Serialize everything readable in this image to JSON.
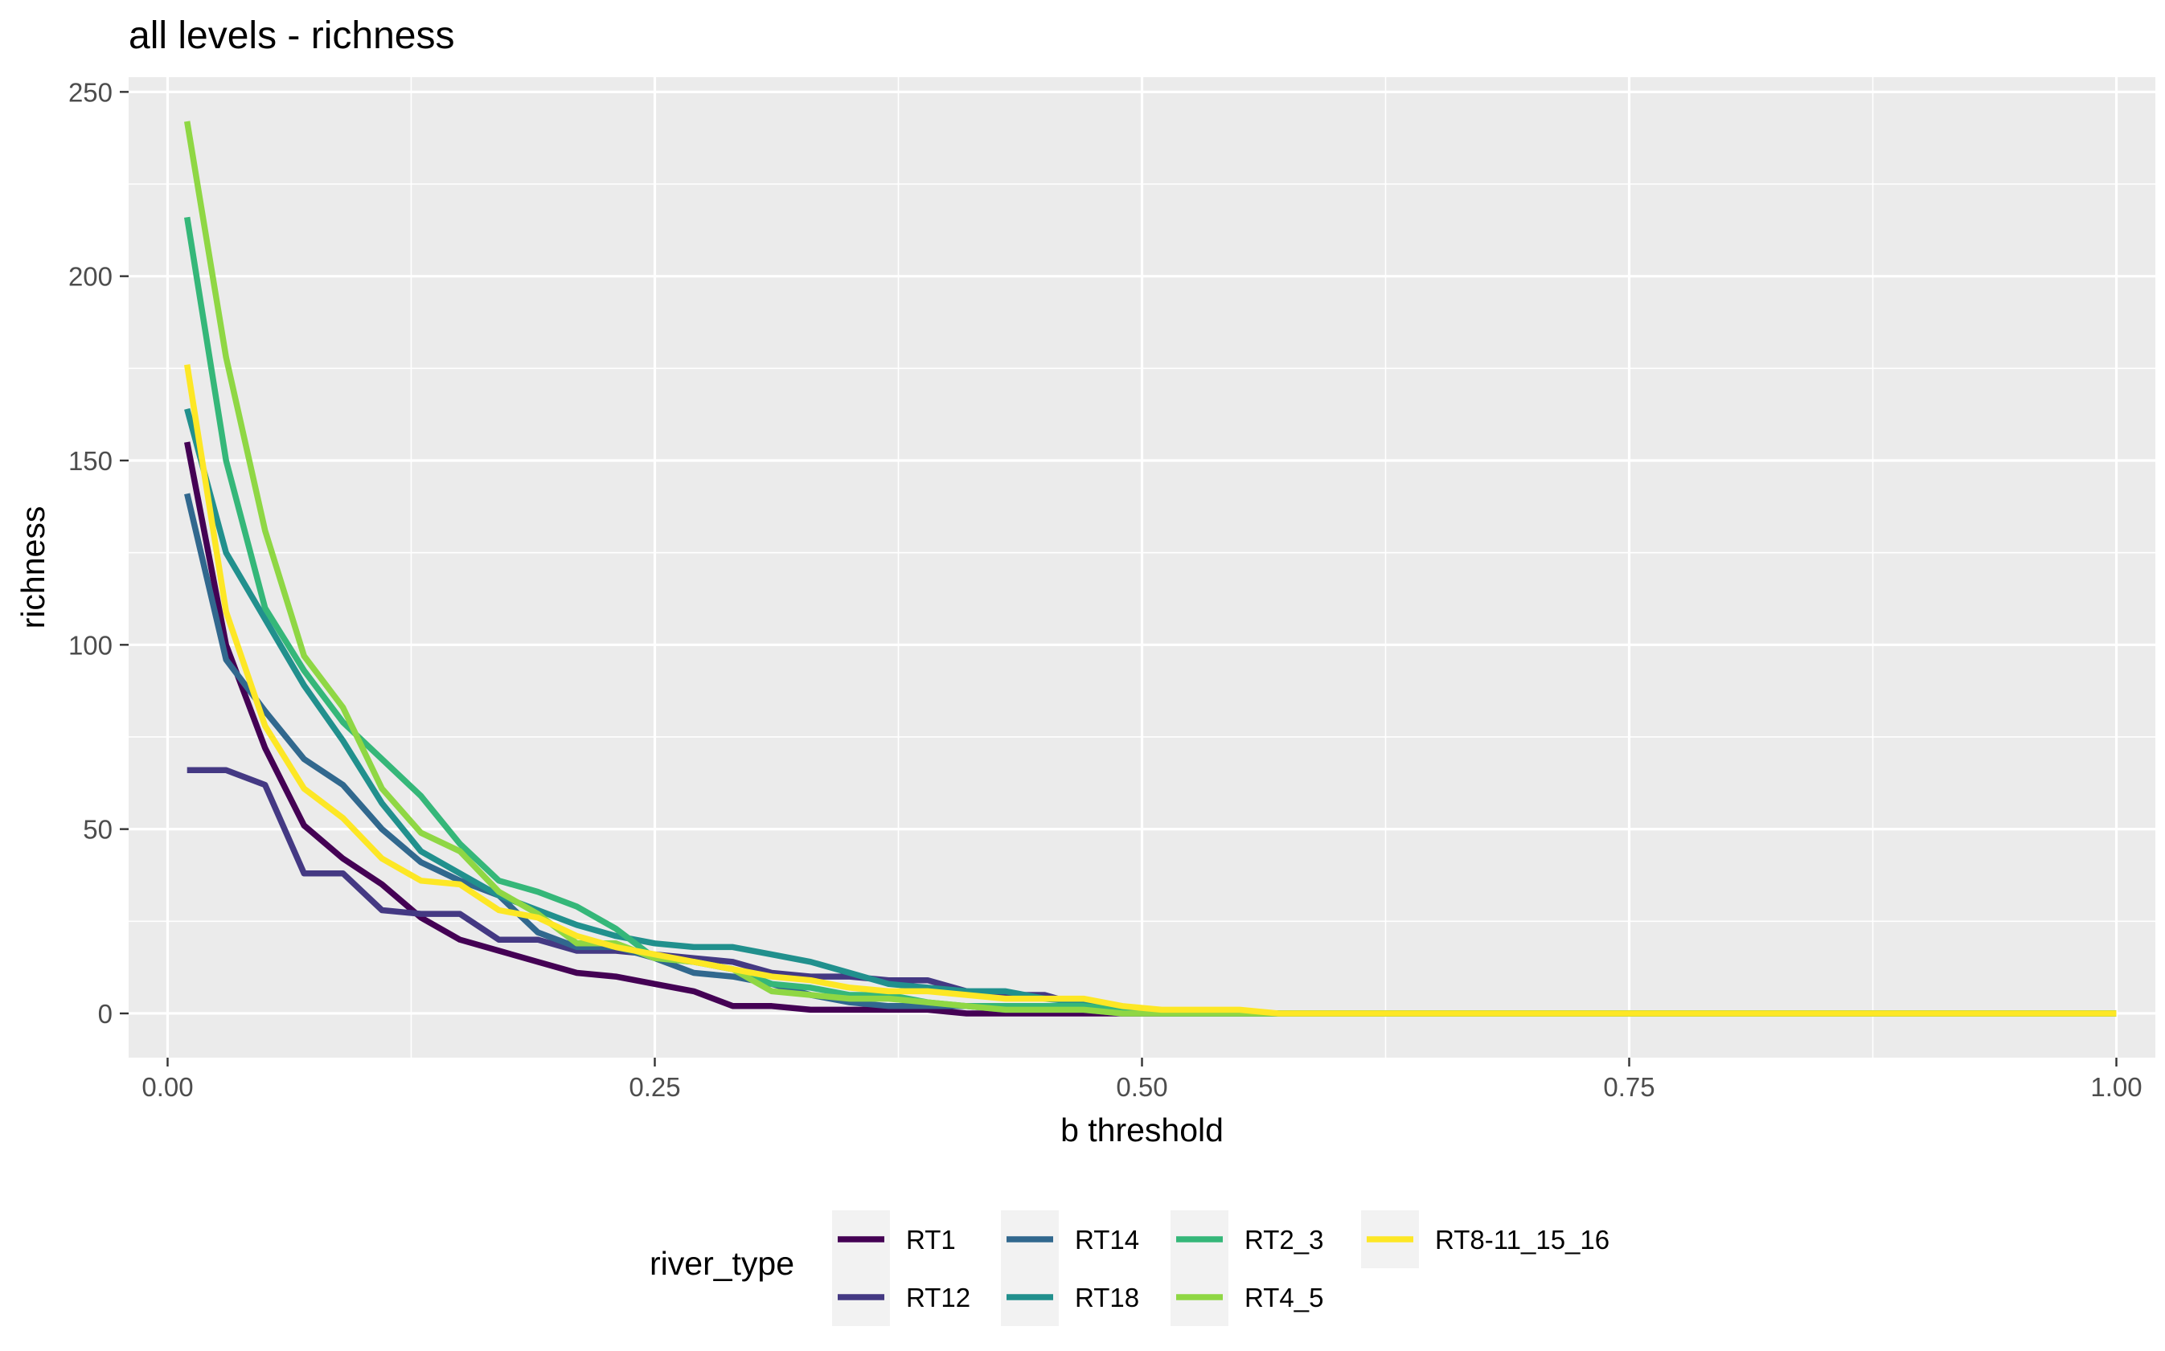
{
  "chart_data": {
    "type": "line",
    "title": "all levels - richness",
    "xlabel": "b threshold",
    "ylabel": "richness",
    "xlim": [
      -0.02,
      1.02
    ],
    "ylim": [
      -12,
      254
    ],
    "x_ticks": [
      0.0,
      0.25,
      0.5,
      0.75,
      1.0
    ],
    "x_tick_labels": [
      "0.00",
      "0.25",
      "0.50",
      "0.75",
      "1.00"
    ],
    "y_ticks": [
      0,
      50,
      100,
      150,
      200,
      250
    ],
    "y_tick_labels": [
      "0",
      "50",
      "100",
      "150",
      "200",
      "250"
    ],
    "grid": true,
    "legend": {
      "title": "river_type",
      "position": "bottom"
    },
    "series": [
      {
        "name": "RT1",
        "color": "#440154",
        "x": [
          0.01,
          0.03,
          0.05,
          0.07,
          0.09,
          0.11,
          0.13,
          0.15,
          0.17,
          0.19,
          0.21,
          0.23,
          0.25,
          0.27,
          0.29,
          0.31,
          0.33,
          0.35,
          0.37,
          0.39,
          0.41,
          0.43,
          0.45,
          0.47,
          0.49,
          0.51,
          0.53,
          0.55,
          0.57,
          0.59,
          1.0
        ],
        "y": [
          155,
          100,
          72,
          51,
          42,
          35,
          26,
          20,
          17,
          14,
          11,
          10,
          8,
          6,
          2,
          2,
          1,
          1,
          1,
          1,
          0,
          0,
          0,
          0,
          0,
          0,
          0,
          0,
          0,
          0,
          0
        ]
      },
      {
        "name": "RT12",
        "color": "#443983",
        "x": [
          0.01,
          0.03,
          0.05,
          0.07,
          0.09,
          0.11,
          0.13,
          0.15,
          0.17,
          0.19,
          0.21,
          0.23,
          0.25,
          0.27,
          0.29,
          0.31,
          0.33,
          0.35,
          0.37,
          0.39,
          0.41,
          0.43,
          0.45,
          0.47,
          0.49,
          0.51,
          0.53,
          0.55,
          0.57,
          0.59,
          1.0
        ],
        "y": [
          66,
          66,
          62,
          38,
          38,
          28,
          27,
          27,
          20,
          20,
          17,
          17,
          16,
          15,
          14,
          11,
          10,
          10,
          9,
          9,
          6,
          5,
          5,
          2,
          1,
          0,
          0,
          0,
          0,
          0,
          0
        ]
      },
      {
        "name": "RT14",
        "color": "#31688e",
        "x": [
          0.01,
          0.03,
          0.05,
          0.07,
          0.09,
          0.11,
          0.13,
          0.15,
          0.17,
          0.19,
          0.21,
          0.23,
          0.25,
          0.27,
          0.29,
          0.31,
          0.33,
          0.35,
          0.37,
          0.39,
          0.41,
          0.43,
          0.45,
          0.47,
          0.49,
          0.51,
          0.53,
          0.55,
          0.57,
          0.59,
          1.0
        ],
        "y": [
          141,
          96,
          82,
          69,
          62,
          50,
          41,
          36,
          32,
          22,
          18,
          18,
          15,
          11,
          10,
          8,
          5,
          3,
          2,
          2,
          2,
          1,
          1,
          1,
          0,
          0,
          0,
          0,
          0,
          0,
          0
        ]
      },
      {
        "name": "RT18",
        "color": "#21908d",
        "x": [
          0.01,
          0.03,
          0.05,
          0.07,
          0.09,
          0.11,
          0.13,
          0.15,
          0.17,
          0.19,
          0.21,
          0.23,
          0.25,
          0.27,
          0.29,
          0.31,
          0.33,
          0.35,
          0.37,
          0.39,
          0.41,
          0.43,
          0.45,
          0.47,
          0.49,
          0.51,
          0.53,
          0.55,
          0.57,
          0.59,
          1.0
        ],
        "y": [
          164,
          125,
          107,
          89,
          74,
          57,
          44,
          38,
          32,
          28,
          24,
          21,
          19,
          18,
          18,
          16,
          14,
          11,
          8,
          7,
          6,
          6,
          4,
          3,
          1,
          0,
          0,
          0,
          0,
          0,
          0
        ]
      },
      {
        "name": "RT2_3",
        "color": "#35b779",
        "x": [
          0.01,
          0.03,
          0.05,
          0.07,
          0.09,
          0.11,
          0.13,
          0.15,
          0.17,
          0.19,
          0.21,
          0.23,
          0.25,
          0.27,
          0.29,
          0.31,
          0.33,
          0.35,
          0.37,
          0.39,
          0.41,
          0.43,
          0.45,
          0.47,
          0.49,
          0.51,
          0.53,
          0.55,
          0.57,
          0.59,
          1.0
        ],
        "y": [
          216,
          150,
          110,
          93,
          79,
          69,
          59,
          46,
          36,
          33,
          29,
          23,
          15,
          14,
          12,
          8,
          7,
          5,
          5,
          3,
          2,
          2,
          2,
          2,
          1,
          0,
          0,
          0,
          0,
          0,
          0
        ]
      },
      {
        "name": "RT4_5",
        "color": "#8fd744",
        "x": [
          0.01,
          0.03,
          0.05,
          0.07,
          0.09,
          0.11,
          0.13,
          0.15,
          0.17,
          0.19,
          0.21,
          0.23,
          0.25,
          0.27,
          0.29,
          0.31,
          0.33,
          0.35,
          0.37,
          0.39,
          0.41,
          0.43,
          0.45,
          0.47,
          0.49,
          0.51,
          0.53,
          0.55,
          0.57,
          0.59,
          1.0
        ],
        "y": [
          242,
          178,
          131,
          97,
          83,
          61,
          49,
          44,
          33,
          27,
          19,
          19,
          15,
          14,
          12,
          6,
          5,
          4,
          4,
          3,
          2,
          1,
          1,
          1,
          0,
          0,
          0,
          0,
          0,
          0,
          0
        ]
      },
      {
        "name": "RT8-11_15_16",
        "color": "#fde725",
        "x": [
          0.01,
          0.03,
          0.05,
          0.07,
          0.09,
          0.11,
          0.13,
          0.15,
          0.17,
          0.19,
          0.21,
          0.23,
          0.25,
          0.27,
          0.29,
          0.31,
          0.33,
          0.35,
          0.37,
          0.39,
          0.41,
          0.43,
          0.45,
          0.47,
          0.49,
          0.51,
          0.53,
          0.55,
          0.57,
          0.59,
          1.0
        ],
        "y": [
          176,
          109,
          78,
          61,
          53,
          42,
          36,
          35,
          28,
          26,
          21,
          18,
          16,
          14,
          12,
          10,
          9,
          7,
          6,
          6,
          5,
          4,
          4,
          4,
          2,
          1,
          1,
          1,
          0,
          0,
          0
        ]
      }
    ]
  }
}
